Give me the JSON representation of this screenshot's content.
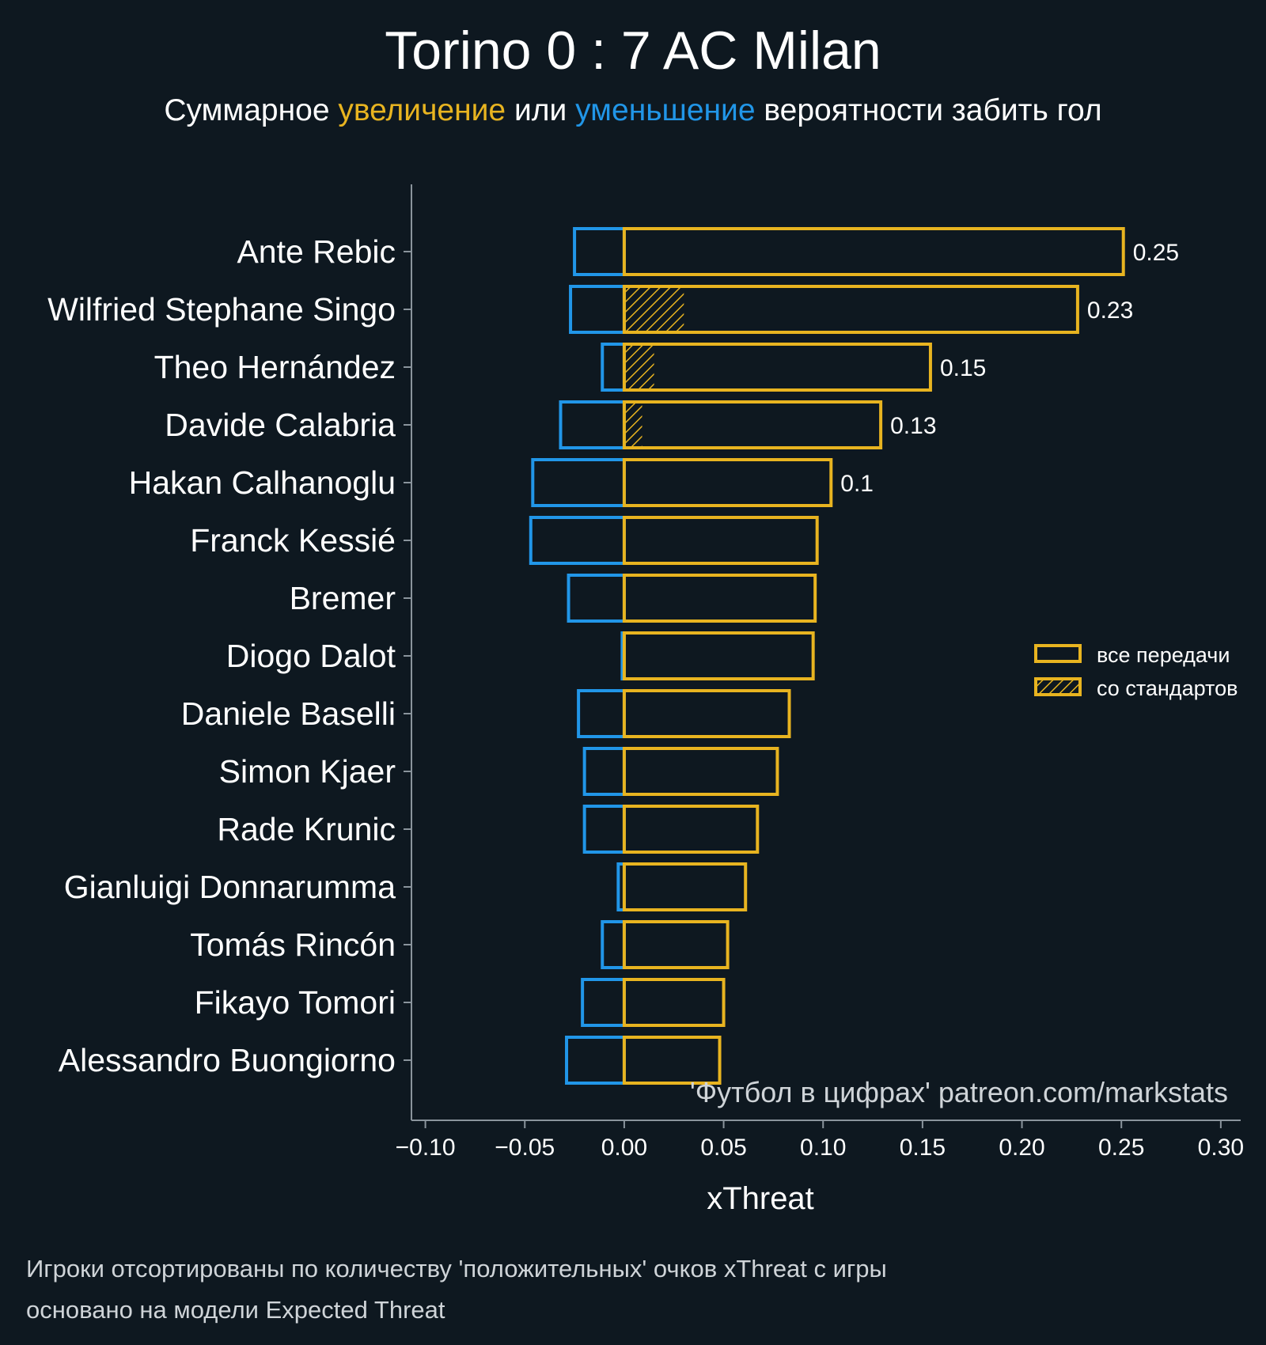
{
  "header": {
    "title": "Torino 0 : 7 AC Milan",
    "subtitle_part1": "Суммарное ",
    "subtitle_increase": "увеличение",
    "subtitle_part2": " или ",
    "subtitle_decrease": "уменьшение",
    "subtitle_part3": " вероятности забить гол"
  },
  "colors": {
    "background": "#0e1820",
    "increase": "#e8b420",
    "decrease": "#2196e8",
    "axis": "#8a949c"
  },
  "legend": {
    "all_passes": "все передачи",
    "set_pieces": "со стандартов"
  },
  "watermark": "'Футбол в цифрах' patreon.com/markstats",
  "footer": {
    "line1": "Игроки отсортированы по количеству 'положительных' очков xThreat с игры",
    "line2": "основано на модели Expected Threat"
  },
  "chart_data": {
    "type": "bar",
    "orientation": "horizontal",
    "xlabel": "xThreat",
    "xlim": [
      -0.107,
      0.31
    ],
    "xticks": [
      -0.1,
      -0.05,
      0.0,
      0.05,
      0.1,
      0.15,
      0.2,
      0.25,
      0.3
    ],
    "xtick_labels": [
      "−0.10",
      "−0.05",
      "0.00",
      "0.05",
      "0.10",
      "0.15",
      "0.20",
      "0.25",
      "0.30"
    ],
    "categories": [
      "Ante Rebic",
      "Wilfried Stephane Singo",
      "Theo Hernández",
      "Davide Calabria",
      "Hakan Calhanoglu",
      "Franck Kessié",
      "Bremer",
      "Diogo Dalot",
      "Daniele Baselli",
      "Simon Kjaer",
      "Rade Krunic",
      "Gianluigi Donnarumma",
      "Tomás Rincón",
      "Fikayo Tomori",
      "Alessandro Buongiorno"
    ],
    "series": [
      {
        "name": "positive",
        "values": [
          0.251,
          0.228,
          0.154,
          0.129,
          0.104,
          0.097,
          0.096,
          0.095,
          0.083,
          0.077,
          0.067,
          0.061,
          0.052,
          0.05,
          0.048
        ]
      },
      {
        "name": "negative",
        "values": [
          -0.025,
          -0.027,
          -0.011,
          -0.032,
          -0.046,
          -0.047,
          -0.028,
          -0.001,
          -0.023,
          -0.02,
          -0.02,
          -0.003,
          -0.011,
          -0.021,
          -0.029
        ]
      },
      {
        "name": "set_pieces",
        "values": [
          0,
          0.03,
          0.015,
          0.009,
          0,
          0,
          0,
          0,
          0,
          0,
          0,
          0,
          0,
          0,
          0
        ]
      }
    ],
    "value_labels": [
      "0.25",
      "0.23",
      "0.15",
      "0.13",
      "0.1",
      "",
      "",
      "",
      "",
      "",
      "",
      "",
      "",
      "",
      ""
    ]
  }
}
